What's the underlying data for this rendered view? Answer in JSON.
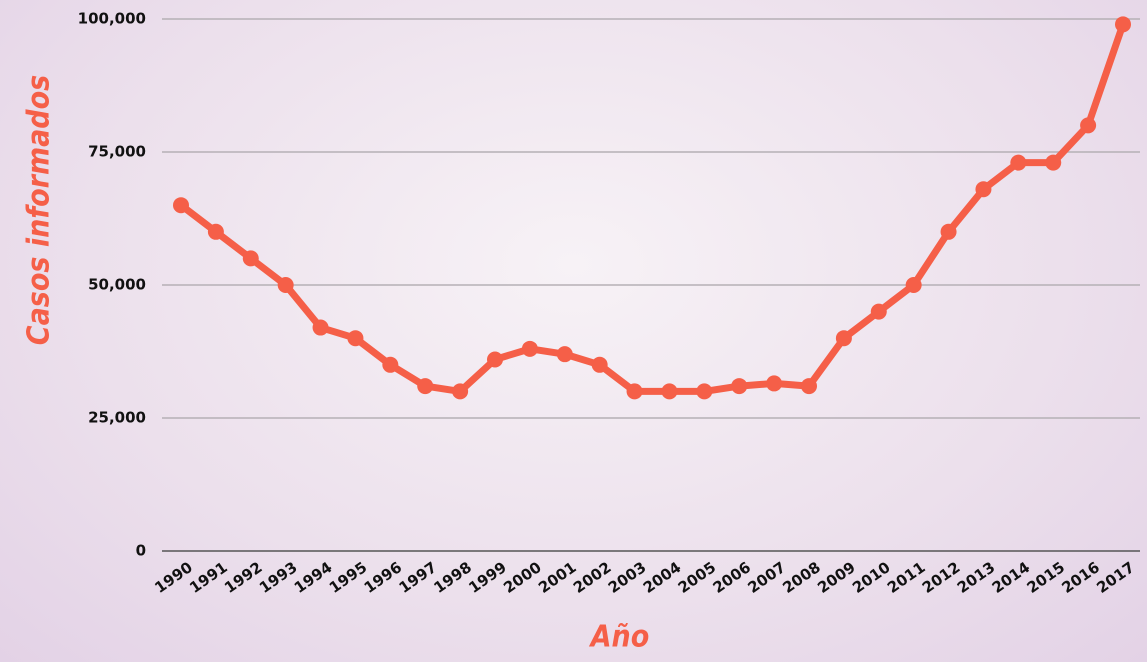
{
  "chart_data": {
    "type": "line",
    "x_label": "Año",
    "y_label": "Casos informados",
    "categories": [
      "1990",
      "1991",
      "1992",
      "1993",
      "1994",
      "1995",
      "1996",
      "1997",
      "1998",
      "1999",
      "2000",
      "2001",
      "2002",
      "2003",
      "2004",
      "2005",
      "2006",
      "2007",
      "2008",
      "2009",
      "2010",
      "2011",
      "2012",
      "2013",
      "2014",
      "2015",
      "2016",
      "2017"
    ],
    "values": [
      65000,
      60000,
      55000,
      50000,
      42000,
      40000,
      35000,
      31000,
      30000,
      36000,
      38000,
      37000,
      35000,
      30000,
      30000,
      30000,
      31000,
      31500,
      31000,
      40000,
      45000,
      50000,
      60000,
      68000,
      73000,
      73000,
      80000,
      99000
    ],
    "color": "#f55f48",
    "ylim": [
      0,
      100000
    ],
    "yticks": [
      0,
      {
        "value": 25000,
        "label": "25,000"
      },
      {
        "value": 50000,
        "label": "50,000"
      },
      {
        "value": 75000,
        "label": "75,000"
      },
      {
        "value": 100000,
        "label": "100,000"
      }
    ],
    "grid": true
  }
}
